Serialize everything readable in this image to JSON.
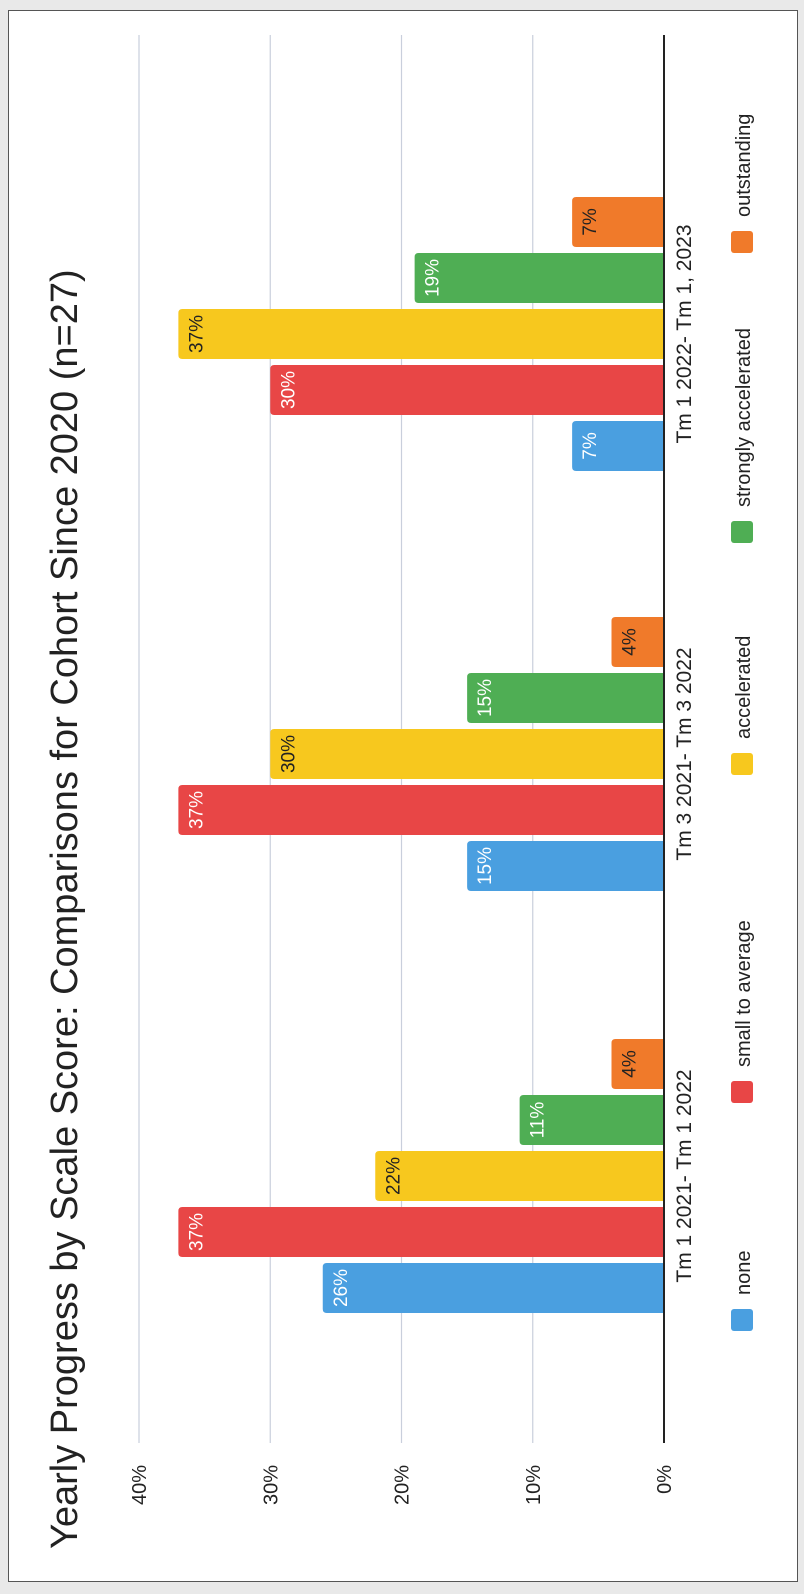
{
  "chart_data": {
    "type": "bar",
    "title": "Yearly Progress by Scale Score: Comparisons for Cohort Since 2020 (n=27)",
    "xlabel": "",
    "ylabel": "",
    "categories": [
      "Tm 1 2021- Tm 1 2022",
      "Tm  3 2021- Tm 3 2022",
      "Tm 1 2022- Tm 1, 2023"
    ],
    "ylim": [
      0,
      40
    ],
    "yticks": [
      "0%",
      "10%",
      "20%",
      "30%",
      "40%"
    ],
    "grid": true,
    "legend_position": "bottom",
    "series": [
      {
        "name": "none",
        "values": [
          26,
          15,
          7
        ],
        "labels": [
          "26%",
          "15%",
          "7%"
        ],
        "color": "#4a9fe0"
      },
      {
        "name": "small to average",
        "values": [
          37,
          37,
          30
        ],
        "labels": [
          "37%",
          "37%",
          "30%"
        ],
        "color": "#e84646"
      },
      {
        "name": "accelerated",
        "values": [
          22,
          30,
          37
        ],
        "labels": [
          "22%",
          "30%",
          "37%"
        ],
        "color": "#f7c81e"
      },
      {
        "name": "strongly accelerated",
        "values": [
          11,
          15,
          19
        ],
        "labels": [
          "11%",
          "15%",
          "19%"
        ],
        "color": "#4fae54"
      },
      {
        "name": "outstanding",
        "values": [
          4,
          4,
          7
        ],
        "labels": [
          "4%",
          "4%",
          "7%"
        ],
        "color": "#f07a2a"
      }
    ]
  }
}
